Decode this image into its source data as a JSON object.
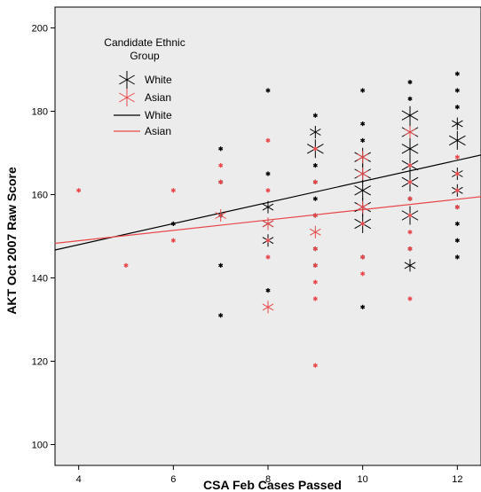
{
  "chart_data": {
    "type": "scatter",
    "xlabel": "CSA Feb Cases Passed",
    "ylabel": "AKT Oct 2007 Raw Score",
    "xlim": [
      3.5,
      12.5
    ],
    "ylim": [
      95,
      205
    ],
    "xticks": [
      4,
      6,
      8,
      10,
      12
    ],
    "yticks": [
      100,
      120,
      140,
      160,
      180,
      200
    ],
    "grid": false,
    "background": "#ececec",
    "legend": {
      "title": "Candidate Ethnic Group",
      "placement": "top-left",
      "entries": [
        {
          "label": "White",
          "kind": "marker",
          "color": "#000000"
        },
        {
          "label": "Asian",
          "kind": "marker",
          "color": "#e8474a"
        },
        {
          "label": "White",
          "kind": "line",
          "color": "#000000"
        },
        {
          "label": "Asian",
          "kind": "line",
          "color": "#e8474a"
        }
      ]
    },
    "series": [
      {
        "name": "White",
        "color": "#000000",
        "points": [
          [
            6,
            153,
            1
          ],
          [
            7,
            171,
            1
          ],
          [
            7,
            163,
            1
          ],
          [
            7,
            155,
            1
          ],
          [
            7,
            143,
            1
          ],
          [
            7,
            131,
            1
          ],
          [
            8,
            185,
            1
          ],
          [
            8,
            165,
            1
          ],
          [
            8,
            157,
            2
          ],
          [
            8,
            153,
            2
          ],
          [
            8,
            149,
            2
          ],
          [
            8,
            137,
            1
          ],
          [
            9,
            179,
            1
          ],
          [
            9,
            175,
            2
          ],
          [
            9,
            171,
            3
          ],
          [
            9,
            167,
            1
          ],
          [
            9,
            163,
            1
          ],
          [
            9,
            159,
            1
          ],
          [
            9,
            155,
            1
          ],
          [
            9,
            147,
            1
          ],
          [
            9,
            143,
            1
          ],
          [
            10,
            185,
            1
          ],
          [
            10,
            177,
            1
          ],
          [
            10,
            173,
            1
          ],
          [
            10,
            169,
            3
          ],
          [
            10,
            165,
            3
          ],
          [
            10,
            161,
            3
          ],
          [
            10,
            157,
            3
          ],
          [
            10,
            153,
            3
          ],
          [
            10,
            145,
            1
          ],
          [
            10,
            133,
            1
          ],
          [
            11,
            187,
            1
          ],
          [
            11,
            183,
            1
          ],
          [
            11,
            179,
            3
          ],
          [
            11,
            175,
            3
          ],
          [
            11,
            171,
            3
          ],
          [
            11,
            167,
            3
          ],
          [
            11,
            163,
            3
          ],
          [
            11,
            159,
            1
          ],
          [
            11,
            155,
            3
          ],
          [
            11,
            147,
            1
          ],
          [
            11,
            143,
            2
          ],
          [
            12,
            189,
            1
          ],
          [
            12,
            185,
            1
          ],
          [
            12,
            181,
            1
          ],
          [
            12,
            177,
            2
          ],
          [
            12,
            173,
            3
          ],
          [
            12,
            165,
            2
          ],
          [
            12,
            161,
            2
          ],
          [
            12,
            157,
            1
          ],
          [
            12,
            153,
            1
          ],
          [
            12,
            149,
            1
          ],
          [
            12,
            145,
            1
          ]
        ]
      },
      {
        "name": "Asian",
        "color": "#e8474a",
        "points": [
          [
            4,
            161,
            1
          ],
          [
            5,
            143,
            1
          ],
          [
            6,
            161,
            1
          ],
          [
            6,
            149,
            1
          ],
          [
            7,
            167,
            1
          ],
          [
            7,
            163,
            1
          ],
          [
            7,
            155,
            2
          ],
          [
            8,
            173,
            1
          ],
          [
            8,
            161,
            1
          ],
          [
            8,
            153,
            2
          ],
          [
            8,
            149,
            1
          ],
          [
            8,
            145,
            1
          ],
          [
            8,
            133,
            2
          ],
          [
            9,
            171,
            1
          ],
          [
            9,
            163,
            1
          ],
          [
            9,
            155,
            1
          ],
          [
            9,
            151,
            2
          ],
          [
            9,
            147,
            1
          ],
          [
            9,
            143,
            1
          ],
          [
            9,
            139,
            1
          ],
          [
            9,
            135,
            1
          ],
          [
            9,
            119,
            1
          ],
          [
            10,
            169,
            2
          ],
          [
            10,
            165,
            2
          ],
          [
            10,
            157,
            2
          ],
          [
            10,
            153,
            1
          ],
          [
            10,
            145,
            1
          ],
          [
            10,
            141,
            1
          ],
          [
            11,
            175,
            2
          ],
          [
            11,
            167,
            1
          ],
          [
            11,
            163,
            1
          ],
          [
            11,
            159,
            1
          ],
          [
            11,
            155,
            1
          ],
          [
            11,
            151,
            1
          ],
          [
            11,
            147,
            1
          ],
          [
            11,
            135,
            1
          ],
          [
            12,
            169,
            1
          ],
          [
            12,
            165,
            1
          ],
          [
            12,
            161,
            1
          ],
          [
            12,
            157,
            1
          ]
        ]
      }
    ],
    "fit_lines": [
      {
        "name": "White",
        "color": "#000000",
        "x": [
          3.5,
          12.5
        ],
        "y": [
          146.7,
          169.5
        ]
      },
      {
        "name": "Asian",
        "color": "#e8474a",
        "x": [
          3.5,
          12.5
        ],
        "y": [
          148.3,
          159.5
        ]
      }
    ]
  }
}
